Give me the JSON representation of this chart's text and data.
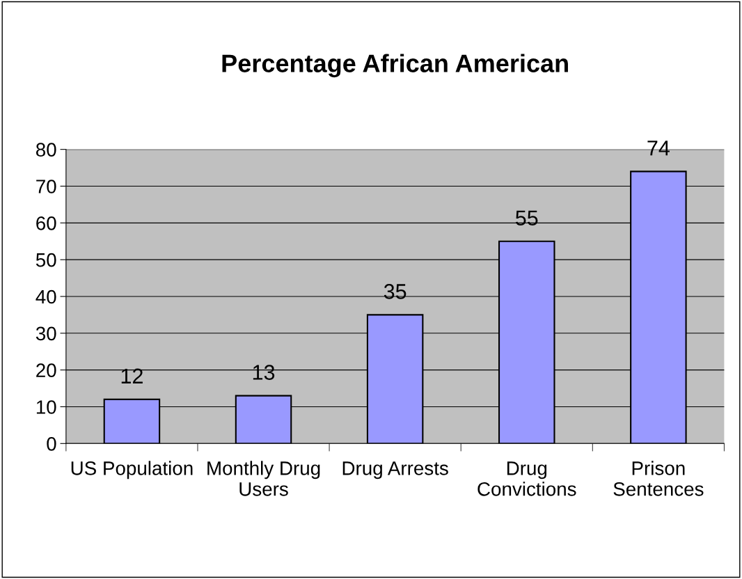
{
  "chart_data": {
    "type": "bar",
    "title": "Percentage African American",
    "categories": [
      "US Population",
      "Monthly Drug\nUsers",
      "Drug Arrests",
      "Drug\nConvictions",
      "Prison\nSentences"
    ],
    "values": [
      12,
      13,
      35,
      55,
      74
    ],
    "color": "#9999ff",
    "ylim": [
      0,
      80
    ],
    "yticks": [
      0,
      10,
      20,
      30,
      40,
      50,
      60,
      70,
      80
    ],
    "grid": "y",
    "data_labels": true
  }
}
